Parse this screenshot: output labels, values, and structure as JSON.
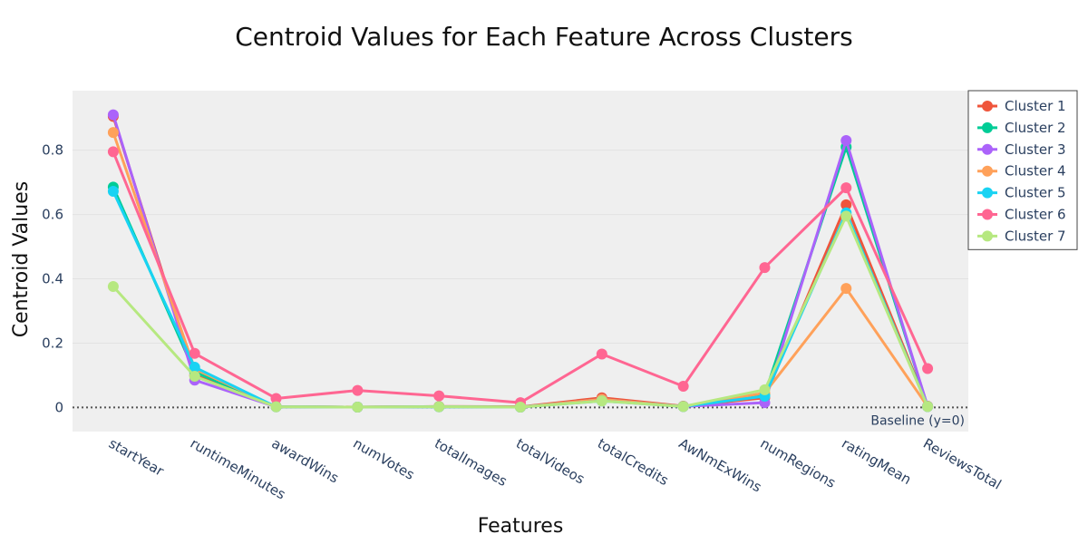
{
  "chart_data": {
    "type": "line",
    "title": "Centroid Values for Each Feature Across Clusters",
    "xlabel": "Features",
    "ylabel": "Centroid Values",
    "categories": [
      "startYear",
      "runtimeMinutes",
      "awardWins",
      "numVotes",
      "totalImages",
      "totalVideos",
      "totalCredits",
      "AwNmExWins",
      "numRegions",
      "ratingMean",
      "ReviewsTotal"
    ],
    "ylim": [
      -0.075,
      0.985
    ],
    "yticks": [
      0,
      0.2,
      0.4,
      0.6,
      0.8
    ],
    "ytick_labels": [
      "0",
      "0.2",
      "0.4",
      "0.6",
      "0.8"
    ],
    "grid": true,
    "legend_position": "right",
    "annotation": "Baseline (y=0)",
    "series": [
      {
        "name": "Cluster 1",
        "color": "#EF553B",
        "values": [
          0.905,
          0.1,
          0.003,
          0.001,
          0.003,
          0.002,
          0.03,
          0.004,
          0.03,
          0.63,
          0.004
        ]
      },
      {
        "name": "Cluster 2",
        "color": "#00CC96",
        "values": [
          0.685,
          0.11,
          0.002,
          0.001,
          0.002,
          0.001,
          0.025,
          0.003,
          0.04,
          0.81,
          0.003
        ]
      },
      {
        "name": "Cluster 3",
        "color": "#AB63FA",
        "values": [
          0.91,
          0.085,
          0.002,
          0.001,
          0.002,
          0.001,
          0.025,
          0.003,
          0.015,
          0.83,
          0.003
        ]
      },
      {
        "name": "Cluster 4",
        "color": "#FFA15A",
        "values": [
          0.855,
          0.12,
          0.002,
          0.001,
          0.003,
          0.001,
          0.025,
          0.003,
          0.045,
          0.37,
          0.003
        ]
      },
      {
        "name": "Cluster 5",
        "color": "#19D3F3",
        "values": [
          0.672,
          0.125,
          0.002,
          0.001,
          0.002,
          0.001,
          0.02,
          0.003,
          0.035,
          0.605,
          0.003
        ]
      },
      {
        "name": "Cluster 6",
        "color": "#FF6692",
        "values": [
          0.795,
          0.168,
          0.028,
          0.053,
          0.036,
          0.015,
          0.166,
          0.066,
          0.435,
          0.683,
          0.121
        ]
      },
      {
        "name": "Cluster 7",
        "color": "#B6E880",
        "values": [
          0.376,
          0.097,
          0.002,
          0.001,
          0.002,
          0.001,
          0.02,
          0.003,
          0.055,
          0.595,
          0.003
        ]
      }
    ]
  }
}
